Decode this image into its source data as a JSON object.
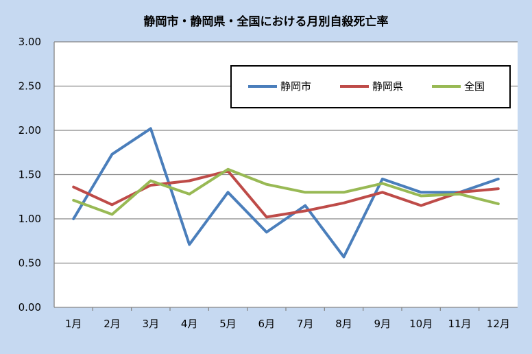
{
  "chart_data": {
    "type": "line",
    "title": "静岡市・静岡県・全国における月別自殺死亡率",
    "xlabel": "",
    "ylabel": "",
    "categories": [
      "1月",
      "2月",
      "3月",
      "4月",
      "5月",
      "6月",
      "7月",
      "8月",
      "9月",
      "10月",
      "11月",
      "12月"
    ],
    "ylim": [
      0,
      3.0
    ],
    "yticks": [
      "0.00",
      "0.50",
      "1.00",
      "1.50",
      "2.00",
      "2.50",
      "3.00"
    ],
    "grid": true,
    "legend_position": "top-right",
    "series": [
      {
        "name": "静岡市",
        "color": "#4a7ebb",
        "values": [
          1.0,
          1.73,
          2.02,
          0.71,
          1.3,
          0.85,
          1.15,
          0.57,
          1.45,
          1.3,
          1.3,
          1.45
        ]
      },
      {
        "name": "静岡県",
        "color": "#be4b48",
        "values": [
          1.36,
          1.16,
          1.38,
          1.43,
          1.54,
          1.02,
          1.09,
          1.18,
          1.3,
          1.15,
          1.3,
          1.34
        ]
      },
      {
        "name": "全国",
        "color": "#98b954",
        "values": [
          1.21,
          1.05,
          1.43,
          1.28,
          1.56,
          1.39,
          1.3,
          1.3,
          1.4,
          1.26,
          1.28,
          1.17
        ]
      }
    ]
  }
}
